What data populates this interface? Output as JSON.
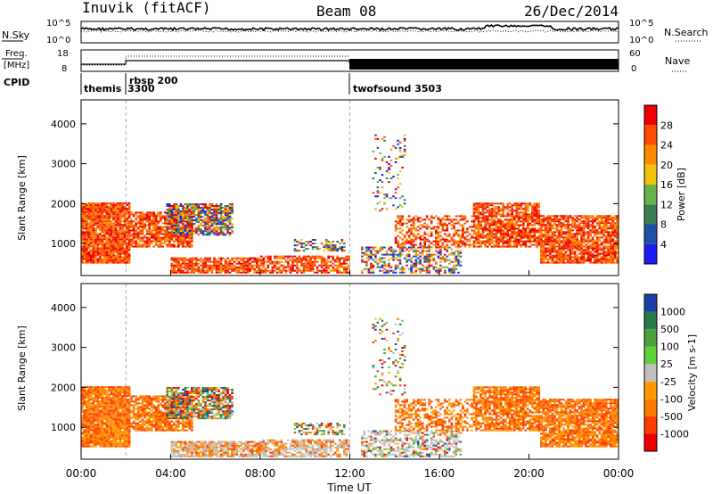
{
  "header": {
    "station": "Inuvik (fitACF)",
    "beam": "Beam 08",
    "date": "26/Dec/2014"
  },
  "top_panels": {
    "nsky_label": "N.Sky",
    "nsearch_label": "N.Search",
    "nsky_ticks": [
      "10^5",
      "10^0"
    ],
    "nsearch_ticks": [
      "10^5",
      "10^0"
    ],
    "freq_label_line1": "Freq.",
    "freq_label_line2": "[MHz]",
    "freq_ticks": [
      "18",
      "8"
    ],
    "nave_label": "Nave",
    "nave_ticks": [
      "60",
      "0"
    ],
    "cpid_label": "CPID",
    "cpid_programs": [
      {
        "name": "themis",
        "cpid": "3300"
      },
      {
        "name": "rbsp 200",
        "cpid": ""
      },
      {
        "name": "twofsound 3503",
        "cpid": ""
      }
    ]
  },
  "colors": {
    "power_scale": [
      "#1c1cf5",
      "#1f4fa8",
      "#3a7d52",
      "#6cb04d",
      "#f2c20b",
      "#ff8a00",
      "#ff4a00",
      "#ee0000"
    ],
    "velocity_scale": [
      "#1f3fa8",
      "#2a7a4e",
      "#4f9f3e",
      "#5fd03a",
      "#bfbfbf",
      "#ff9a00",
      "#ff7a00",
      "#ff3c00",
      "#ee0000"
    ]
  },
  "chart_data": [
    {
      "type": "heatmap",
      "title": "",
      "xlabel": "",
      "ylabel": "Slant Range [km]",
      "xlim": [
        "00:00",
        "24:00"
      ],
      "ylim": [
        200,
        4600
      ],
      "x_ticks": [
        "00:00",
        "04:00",
        "08:00",
        "12:00",
        "16:00",
        "20:00",
        "00:00"
      ],
      "y_ticks": [
        1000,
        2000,
        3000,
        4000
      ],
      "colorbar_label": "Power [dB]",
      "colorbar_ticks": [
        4,
        8,
        12,
        16,
        20,
        24,
        28
      ],
      "vlines_hours": [
        2,
        12
      ]
    },
    {
      "type": "heatmap",
      "title": "",
      "xlabel": "Time UT",
      "ylabel": "Slant Range [km]",
      "xlim": [
        "00:00",
        "24:00"
      ],
      "ylim": [
        200,
        4600
      ],
      "x_ticks": [
        "00:00",
        "04:00",
        "08:00",
        "12:00",
        "16:00",
        "20:00",
        "00:00"
      ],
      "y_ticks": [
        1000,
        2000,
        3000,
        4000
      ],
      "colorbar_label": "Velocity [m s-1]",
      "colorbar_ticks": [
        "1000",
        "500",
        "100",
        "25",
        "-25",
        "-100",
        "-500",
        "-1000"
      ],
      "vlines_hours": [
        2,
        12
      ]
    }
  ]
}
